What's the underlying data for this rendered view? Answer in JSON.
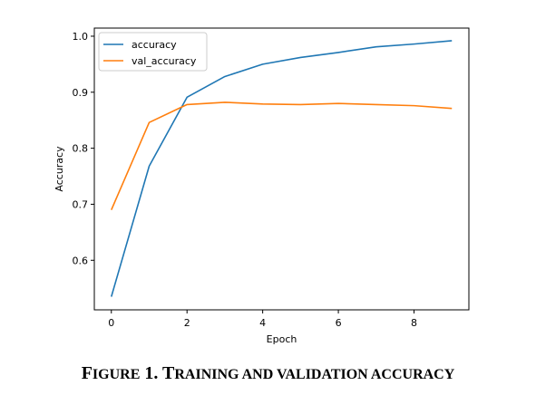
{
  "caption": "Figure 1. Training and validation accuracy",
  "chart_data": {
    "type": "line",
    "xlabel": "Epoch",
    "ylabel": "Accuracy",
    "title": "",
    "x": [
      0,
      1,
      2,
      3,
      4,
      5,
      6,
      7,
      8,
      9
    ],
    "xlim": [
      -0.45,
      9.45
    ],
    "ylim": [
      0.5115,
      1.0145
    ],
    "xticks": [
      0,
      2,
      4,
      6,
      8
    ],
    "yticks": [
      0.6,
      0.7,
      0.8,
      0.9,
      1.0
    ],
    "xtick_labels": [
      "0",
      "2",
      "4",
      "6",
      "8"
    ],
    "ytick_labels": [
      "0.6",
      "0.7",
      "0.8",
      "0.9",
      "1.0"
    ],
    "grid": false,
    "legend_position": "top-left",
    "series": [
      {
        "name": "accuracy",
        "color": "#1f77b4",
        "values": [
          0.535,
          0.768,
          0.891,
          0.928,
          0.95,
          0.962,
          0.971,
          0.981,
          0.986,
          0.992
        ]
      },
      {
        "name": "val_accuracy",
        "color": "#ff7f0e",
        "values": [
          0.69,
          0.846,
          0.878,
          0.882,
          0.879,
          0.878,
          0.88,
          0.878,
          0.876,
          0.871
        ]
      }
    ]
  }
}
